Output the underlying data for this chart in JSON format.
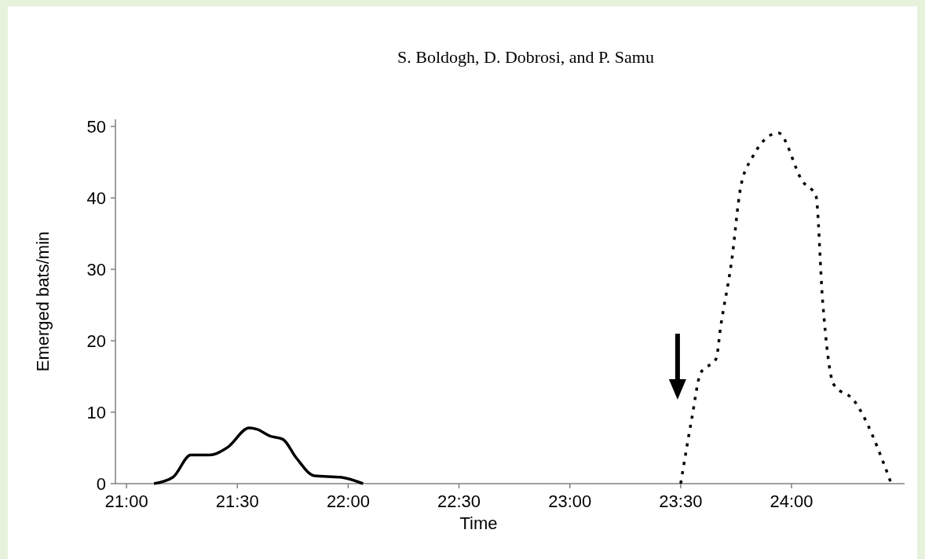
{
  "chart_data": {
    "type": "line",
    "title": "S. Boldogh, D. Dobrosi, and P. Samu",
    "xlabel": "Time",
    "ylabel": "Emerged bats/min",
    "xlim": [
      20.95,
      24.51
    ],
    "ylim": [
      0,
      51
    ],
    "xticks": [
      {
        "value": 21,
        "label": "21:00"
      },
      {
        "value": 21.5,
        "label": "21:30"
      },
      {
        "value": 22,
        "label": "22:00"
      },
      {
        "value": 22.5,
        "label": "22:30"
      },
      {
        "value": 23,
        "label": "23:00"
      },
      {
        "value": 23.5,
        "label": "23:30"
      },
      {
        "value": 24,
        "label": "24:00"
      }
    ],
    "yticks": [
      0,
      10,
      20,
      30,
      40,
      50
    ],
    "grid": false,
    "series": [
      {
        "color": "#000000",
        "line_style": "solid",
        "x": [
          21.124,
          21.21,
          21.29,
          21.375,
          21.457,
          21.553,
          21.59,
          21.645,
          21.706,
          21.766,
          21.848,
          21.965,
          22.067
        ],
        "values": [
          0,
          0.9,
          4,
          4,
          5.1,
          7.8,
          7.6,
          6.7,
          6.2,
          3.6,
          1.1,
          0.9,
          0
        ]
      },
      {
        "color": "#000000",
        "line_style": "dotted",
        "x": [
          23.5,
          23.55,
          23.59,
          23.66,
          23.68,
          23.73,
          23.77,
          23.82,
          23.94,
          24.05,
          24.11,
          24.14,
          24.19,
          24.28,
          24.45
        ],
        "values": [
          0,
          9.1,
          15.5,
          17.5,
          21.9,
          31.2,
          41.4,
          45.5,
          49.1,
          42.3,
          40.3,
          25.7,
          13.9,
          11.7,
          0
        ]
      }
    ]
  }
}
